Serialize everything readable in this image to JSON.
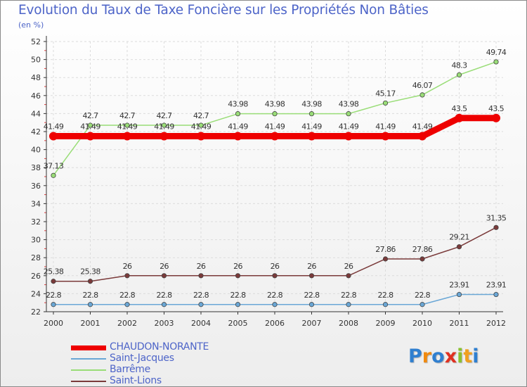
{
  "chart_data": {
    "type": "line",
    "title": "Evolution du Taux de Taxe Foncière sur les Propriétés Non Bâties",
    "ylabel": "(en %)",
    "xlabel": "",
    "ylim": [
      22,
      52
    ],
    "yticks": [
      "22",
      "24",
      "26",
      "28",
      "30",
      "32",
      "34",
      "36",
      "38",
      "40",
      "42",
      "44",
      "46",
      "48",
      "50",
      "52"
    ],
    "categories": [
      "2000",
      "2001",
      "2002",
      "2003",
      "2004",
      "2005",
      "2006",
      "2007",
      "2008",
      "2009",
      "2010",
      "2011",
      "2012"
    ],
    "grid": true,
    "series": [
      {
        "name": "CHAUDON-NORANTE",
        "color": "#ee0000",
        "values": [
          41.49,
          41.49,
          41.49,
          41.49,
          41.49,
          41.49,
          41.49,
          41.49,
          41.49,
          41.49,
          41.49,
          43.5,
          43.5
        ],
        "labels": [
          "41.49",
          "41.49",
          "41.49",
          "41.49",
          "41.49",
          "41.49",
          "41.49",
          "41.49",
          "41.49",
          "41.49",
          "41.49",
          "43.5",
          "43.5"
        ]
      },
      {
        "name": "Saint-Jacques",
        "color": "#6aa7d6",
        "values": [
          22.8,
          22.8,
          22.8,
          22.8,
          22.8,
          22.8,
          22.8,
          22.8,
          22.8,
          22.8,
          22.8,
          23.91,
          23.91
        ],
        "labels": [
          "22.8",
          "22.8",
          "22.8",
          "22.8",
          "22.8",
          "22.8",
          "22.8",
          "22.8",
          "22.8",
          "22.8",
          "22.8",
          "23.91",
          "23.91"
        ]
      },
      {
        "name": "Barrême",
        "color": "#99dd77",
        "values": [
          37.13,
          42.7,
          42.7,
          42.7,
          42.7,
          43.98,
          43.98,
          43.98,
          43.98,
          45.17,
          46.07,
          48.3,
          49.74
        ],
        "labels": [
          "37.13",
          "42.7",
          "42.7",
          "42.7",
          "42.7",
          "43.98",
          "43.98",
          "43.98",
          "43.98",
          "45.17",
          "46.07",
          "48.3",
          "49.74"
        ]
      },
      {
        "name": "Saint-Lions",
        "color": "#7a3a3a",
        "values": [
          25.38,
          25.38,
          26,
          26,
          26,
          26,
          26,
          26,
          26,
          27.86,
          27.86,
          29.21,
          31.35
        ],
        "labels": [
          "25.38",
          "25.38",
          "26",
          "26",
          "26",
          "26",
          "26",
          "26",
          "26",
          "27.86",
          "27.86",
          "29.21",
          "31.35"
        ]
      }
    ]
  },
  "logo": {
    "text": "Proxiti",
    "letters": [
      "P",
      "r",
      "o",
      "x",
      "i",
      "t",
      "i"
    ],
    "colors": [
      "#2f7fd0",
      "#f08a10",
      "#2f7fd0",
      "#e03020",
      "#8ac030",
      "#f0a020",
      "#2f7fd0"
    ]
  }
}
